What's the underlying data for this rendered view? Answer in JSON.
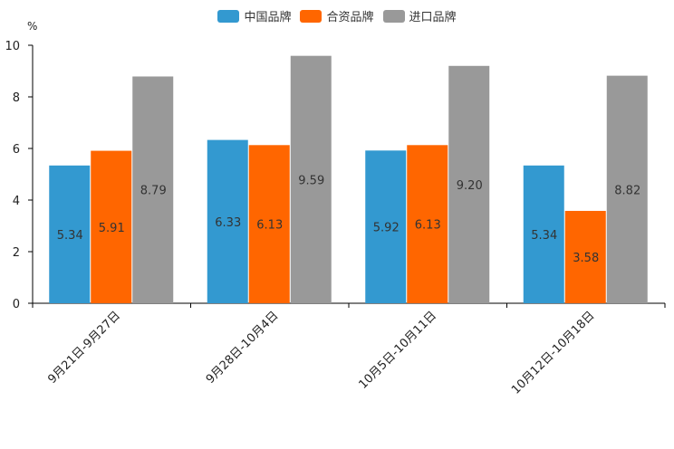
{
  "chart_data": {
    "type": "bar",
    "title": "",
    "unit_label": "%",
    "xlabel": "",
    "ylabel": "%",
    "ylim": [
      0,
      10
    ],
    "yticks": [
      0,
      2,
      4,
      6,
      8,
      10
    ],
    "categories": [
      "9月21日-9月27日",
      "9月28日-10月4日",
      "10月5日-10月11日",
      "10月12日-10月18日"
    ],
    "series": [
      {
        "name": "中国品牌",
        "color": "#3399d0",
        "values": [
          5.34,
          6.33,
          5.92,
          5.34
        ]
      },
      {
        "name": "合资品牌",
        "color": "#ff6600",
        "values": [
          5.91,
          6.13,
          6.13,
          3.58
        ]
      },
      {
        "name": "进口品牌",
        "color": "#999999",
        "values": [
          8.79,
          9.59,
          9.2,
          8.82
        ]
      }
    ],
    "legend_position": "top-center",
    "grid": false
  }
}
